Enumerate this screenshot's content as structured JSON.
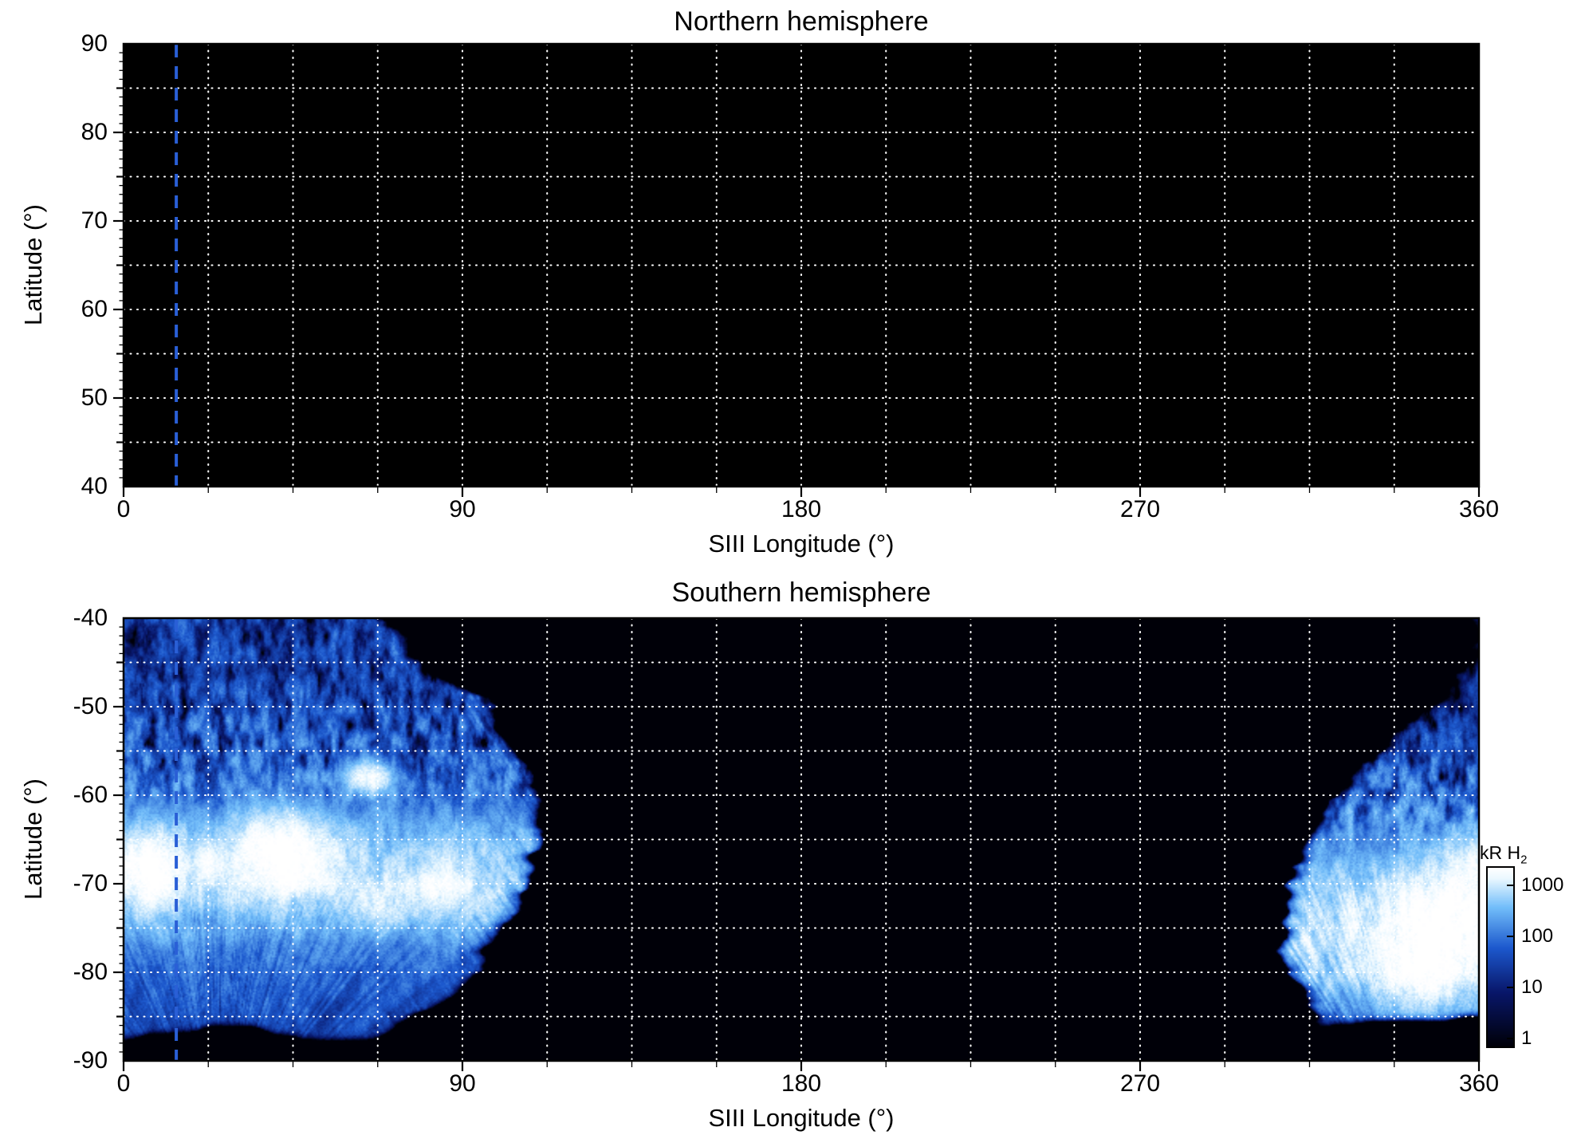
{
  "figure": {
    "background": "#ffffff",
    "plot_background": "#000000",
    "grid_color": "#ffffff",
    "dashed_line_color": "#2a5fd6"
  },
  "chart_data": [
    {
      "type": "heatmap",
      "title": "Northern hemisphere",
      "xlabel": "SIII Longitude (°)",
      "ylabel": "Latitude (°)",
      "xlim": [
        0,
        360
      ],
      "ylim": [
        40,
        90
      ],
      "xticks": [
        0,
        90,
        180,
        270,
        360
      ],
      "yticks": [
        90,
        80,
        70,
        60,
        50,
        40
      ],
      "grid_lon_step": 22.5,
      "grid_lat_step": 5,
      "grid_style": "dotted",
      "dashed_line_lon": 14,
      "data_summary": "no emission visible; entire map at background level (black, < 1 kR)",
      "emission_regions": []
    },
    {
      "type": "heatmap",
      "title": "Southern hemisphere",
      "xlabel": "SIII Longitude (°)",
      "ylabel": "Latitude (°)",
      "xlim": [
        0,
        360
      ],
      "ylim": [
        -90,
        -40
      ],
      "xticks": [
        0,
        90,
        180,
        270,
        360
      ],
      "yticks": [
        -40,
        -50,
        -60,
        -70,
        -80,
        -90
      ],
      "grid_lon_step": 22.5,
      "grid_lat_step": 5,
      "grid_style": "dotted",
      "dashed_line_lon": 14,
      "data_summary": "auroral H2 emission patches: large speckled region lon 0-112 deg reaching >1000 kR near lat -65 to -73, and second bright region lon 310-360 deg peaking near lat -70 to -82; black background elsewhere",
      "emission_regions": [
        {
          "name": "main-oval-segment-lon0-110",
          "lon_min": 0,
          "lon_max": 115,
          "seed": 3,
          "right_edge": [
            [
              -88,
              62
            ],
            [
              -84,
              82
            ],
            [
              -80,
              93
            ],
            [
              -75,
              100
            ],
            [
              -70,
              107
            ],
            [
              -65,
              111
            ],
            [
              -60,
              109
            ],
            [
              -55,
              104
            ],
            [
              -50,
              97
            ],
            [
              -45,
              80
            ],
            [
              -40,
              66
            ]
          ],
          "bands": [
            [
              -88,
              28
            ],
            [
              -86,
              45
            ],
            [
              -83,
              65
            ],
            [
              -80,
              90
            ],
            [
              -77,
              150
            ],
            [
              -74,
              350
            ],
            [
              -71,
              650
            ],
            [
              -67,
              650
            ],
            [
              -64,
              350
            ],
            [
              -61,
              120
            ],
            [
              -57,
              45
            ],
            [
              -52,
              30
            ],
            [
              -46,
              18
            ],
            [
              -40,
              15
            ]
          ],
          "bottom_cut": -87,
          "speckle_hi_lat": -56,
          "speckle_lo_lat": -63,
          "streak_start": -66,
          "streak_full": -75,
          "focus": [
            25,
            -100
          ],
          "blobs": [
            [
              7,
              -68.5,
              9,
              4.5,
              2500
            ],
            [
              42,
              -67,
              14,
              4.5,
              3000
            ],
            [
              22,
              -68,
              3,
              2,
              1500
            ],
            [
              85,
              -70,
              8,
              3.5,
              1300
            ],
            [
              65,
              -58,
              6,
              1.8,
              1600
            ],
            [
              70,
              -72,
              10,
              3,
              700
            ]
          ]
        },
        {
          "name": "main-oval-segment-lon310-360",
          "lon_min": 300,
          "lon_max": 360,
          "seed": 11,
          "left_edge": [
            [
              -85,
              318
            ],
            [
              -80,
              311
            ],
            [
              -75,
              308
            ],
            [
              -70,
              311
            ],
            [
              -65,
              316
            ],
            [
              -60,
              323
            ],
            [
              -56,
              332
            ],
            [
              -52,
              342
            ],
            [
              -48,
              352
            ],
            [
              -45,
              359
            ]
          ],
          "bands": [
            [
              -85.4,
              80
            ],
            [
              -83,
              250
            ],
            [
              -80,
              700
            ],
            [
              -76,
              1100
            ],
            [
              -72,
              900
            ],
            [
              -68,
              400
            ],
            [
              -64,
              150
            ],
            [
              -60,
              60
            ],
            [
              -55,
              25
            ],
            [
              -50,
              10
            ],
            [
              -45,
              6
            ]
          ],
          "bottom_cut": -85.4,
          "speckle_hi_lat": -60,
          "speckle_lo_lat": -67,
          "streak_start": -64,
          "streak_full": -72,
          "focus": [
            345,
            -100
          ],
          "blobs": [
            [
              352,
              -73,
              16,
              5,
              1800
            ],
            [
              346,
              -79,
              14,
              5,
              2200
            ],
            [
              358,
              -68,
              8,
              3,
              1200
            ]
          ]
        }
      ]
    }
  ],
  "colorbar": {
    "label_main": "kR H",
    "label_sub": "2",
    "scale": "log",
    "tick_values": [
      1000,
      100,
      10,
      1
    ],
    "log_top": 3.351,
    "log_span": 3.509,
    "colormap": {
      "t": [
        0,
        0.3,
        0.55,
        0.78,
        0.94,
        1
      ],
      "rgb": [
        [
          0,
          0,
          8
        ],
        [
          8,
          22,
          105
        ],
        [
          28,
          88,
          205
        ],
        [
          115,
          190,
          250
        ],
        [
          235,
          248,
          255
        ],
        [
          255,
          255,
          255
        ]
      ]
    }
  }
}
